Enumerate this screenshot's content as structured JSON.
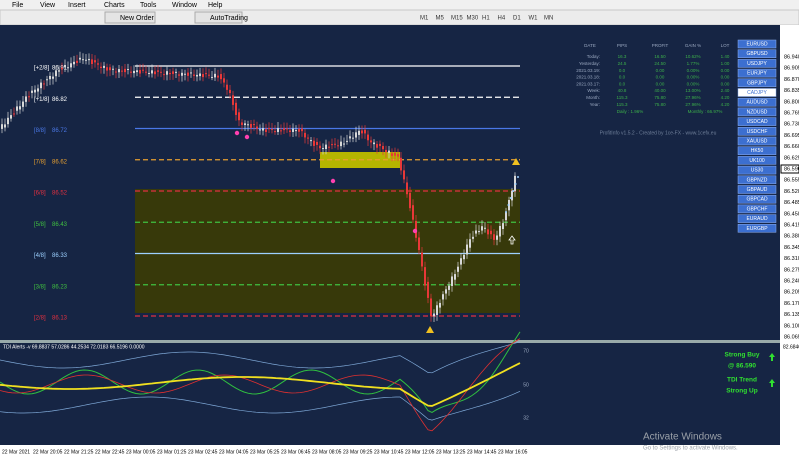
{
  "menu": [
    "File",
    "View",
    "Insert",
    "Charts",
    "Tools",
    "Window",
    "Help"
  ],
  "toolbar": {
    "buttons": [
      "New Order",
      "AutoTrading"
    ],
    "timeframes": [
      "M1",
      "M5",
      "M15",
      "M30",
      "H1",
      "H4",
      "D1",
      "W1",
      "MN"
    ]
  },
  "murrey_levels": [
    {
      "label": "[+2/8]",
      "price": "86.91"
    },
    {
      "label": "[+1/8]",
      "price": "86.82"
    },
    {
      "label": "[8/8]",
      "price": "86.72"
    },
    {
      "label": "[7/8]",
      "price": "86.62"
    },
    {
      "label": "[6/8]",
      "price": "86.52"
    },
    {
      "label": "[5/8]",
      "price": "86.43"
    },
    {
      "label": "[4/8]",
      "price": "86.33"
    },
    {
      "label": "[3/8]",
      "price": "86.23"
    },
    {
      "label": "[2/8]",
      "price": "86.13"
    }
  ],
  "price_axis": [
    "86.940",
    "86.905",
    "86.870",
    "86.835",
    "86.800",
    "86.765",
    "86.730",
    "86.695",
    "86.660",
    "86.625",
    "86.590",
    "86.555",
    "86.520",
    "86.485",
    "86.450",
    "86.415",
    "86.380",
    "86.345",
    "86.310",
    "86.275",
    "86.240",
    "86.205",
    "86.170",
    "86.135",
    "86.100",
    "86.065"
  ],
  "profit_table": {
    "headers": [
      "DATE",
      "PIPS",
      "PROFIT",
      "GAIN %",
      "LOT"
    ],
    "rows": [
      [
        "Today:",
        "16.3",
        "16.50",
        "10.62%",
        "1.40"
      ],
      [
        "Yesterday:",
        "24.5",
        "24.50",
        "1.77%",
        "1.00"
      ],
      [
        "2021.03.19:",
        "0.0",
        "0.00",
        "0.00%",
        "0.00"
      ],
      [
        "2021.03.18:",
        "0.0",
        "0.00",
        "0.00%",
        "0.00"
      ],
      [
        "2021.03.17:",
        "0.0",
        "0.00",
        "0.00%",
        "0.00"
      ],
      [
        "Week:",
        "40.8",
        "40.00",
        "13.00%",
        "2.40"
      ],
      [
        "Month:",
        "115.3",
        "75.80",
        "27.96%",
        "4.20"
      ],
      [
        "Year:",
        "115.3",
        "75.80",
        "27.96%",
        "4.20"
      ]
    ],
    "daily": "Daily : 1.96%",
    "monthly": "Monthly : 66.97%",
    "credit": "ProfitInfo v1.5.2 - Created by 1ce-FX - www.1cefx.eu"
  },
  "symbols": [
    "EURUSD",
    "GBPUSD",
    "USDJPY",
    "EURJPY",
    "GBPJPY",
    "CADJPY",
    "AUDUSD",
    "NZDUSD",
    "USDCAD",
    "USDCHF",
    "XAUUSD",
    "HK50",
    "UK100",
    "US30",
    "GBPNZD",
    "GBPAUD",
    "GBPCAD",
    "GBPCHF",
    "EURAUD",
    "EURGBP"
  ],
  "indicator": {
    "label": "TDI Alerts -v 69.8837 57.0286 44.2534 72.0183 66.5196 0.0000",
    "scale_top": "82.6846",
    "levels": [
      "70",
      "50",
      "32"
    ],
    "signal": [
      "Strong Buy",
      "@ 86.590",
      "TDI Trend",
      "Strong Up"
    ]
  },
  "time_axis": [
    "22 Mar 2021",
    "22 Mar 20:05",
    "22 Mar 21:25",
    "22 Mar 22:45",
    "23 Mar 00:05",
    "23 Mar 01:25",
    "23 Mar 02:45",
    "23 Mar 04:05",
    "23 Mar 05:25",
    "23 Mar 06:45",
    "23 Mar 08:05",
    "23 Mar 09:25",
    "23 Mar 10:45",
    "23 Mar 12:05",
    "23 Mar 13:25",
    "23 Mar 14:45",
    "23 Mar 16:05"
  ],
  "watermark": {
    "title": "Activate Windows",
    "subtitle": "Go to Settings to activate Windows."
  }
}
